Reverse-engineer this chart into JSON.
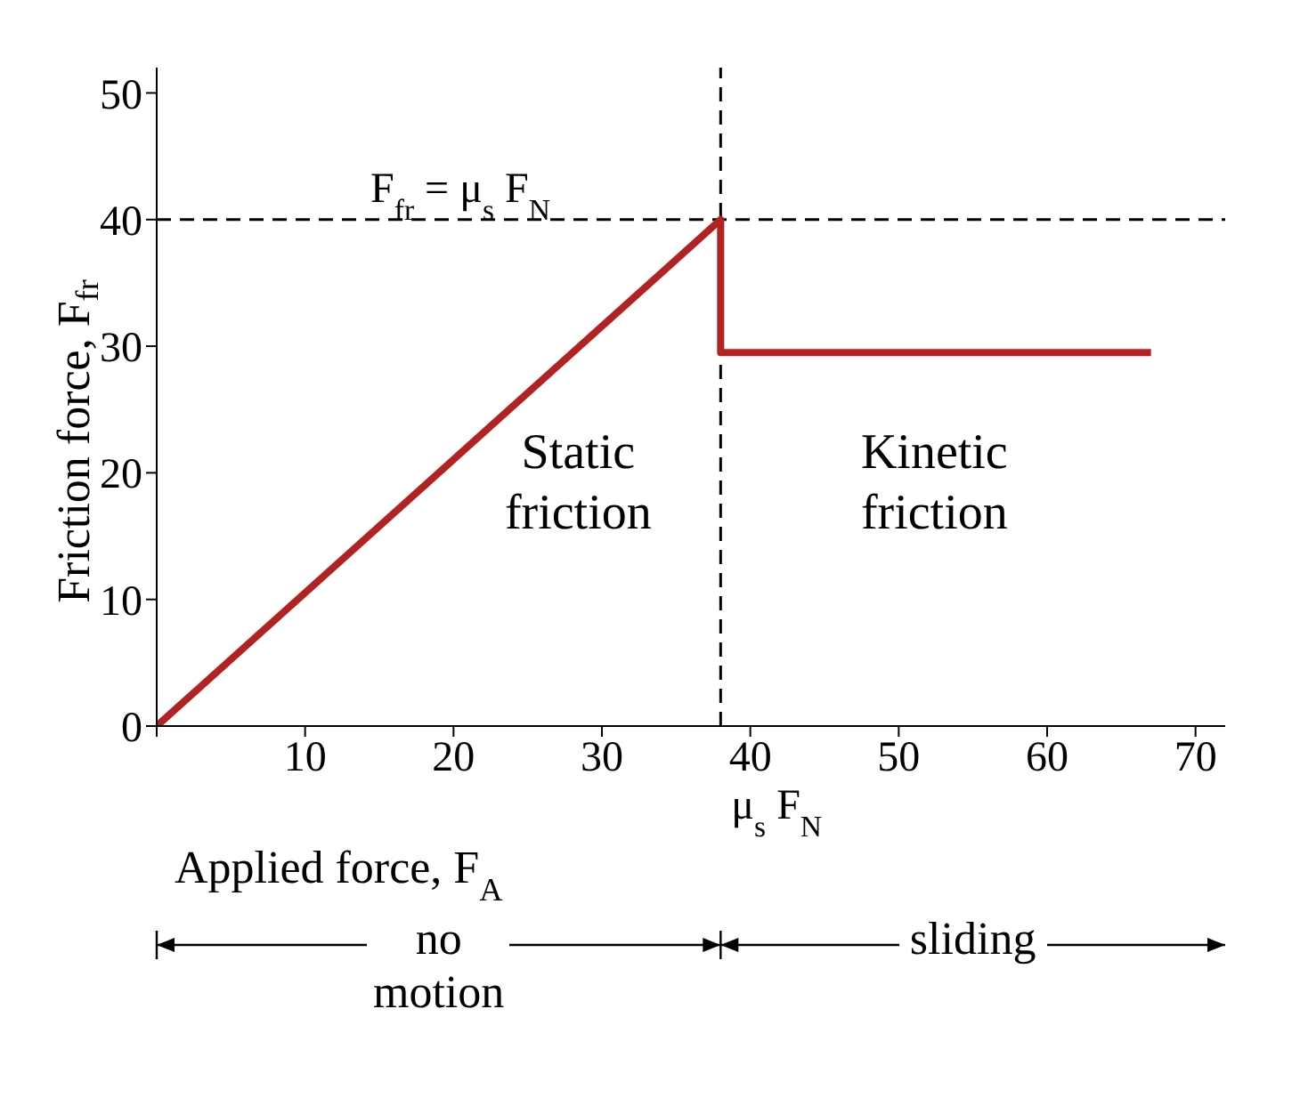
{
  "chart_data": {
    "type": "line",
    "xlabel": "Applied force, F$_{A}$",
    "ylabel": "Friction force, F$_{fr}$",
    "x": [
      0,
      38,
      38,
      67
    ],
    "series": [
      {
        "color": "#b22222",
        "values": [
          0,
          40,
          29.5,
          29.5
        ]
      }
    ],
    "xlim": [
      0,
      72
    ],
    "ylim": [
      0,
      52
    ],
    "xticks": [
      {
        "value": 0,
        "label": null
      },
      10,
      20,
      30,
      40,
      50,
      60,
      70
    ],
    "yticks": [
      0,
      10,
      20,
      30,
      40,
      50
    ],
    "ref_lines": [
      {
        "axis": "y",
        "value": 40,
        "label": "F$_{fr}$ = μ$_{s}$ F$_{N}$",
        "color": "#000000",
        "line_style": "dashed"
      },
      {
        "axis": "x",
        "value": 38,
        "label": "μ$_{s}$ F$_{N}$",
        "color": "#000000",
        "line_style": "dashed"
      }
    ],
    "annotations": [
      "Static friction",
      "Kinetic friction",
      "no motion",
      "sliding"
    ],
    "marker": "none",
    "line_style": "solid",
    "grid": false,
    "legend": false
  }
}
